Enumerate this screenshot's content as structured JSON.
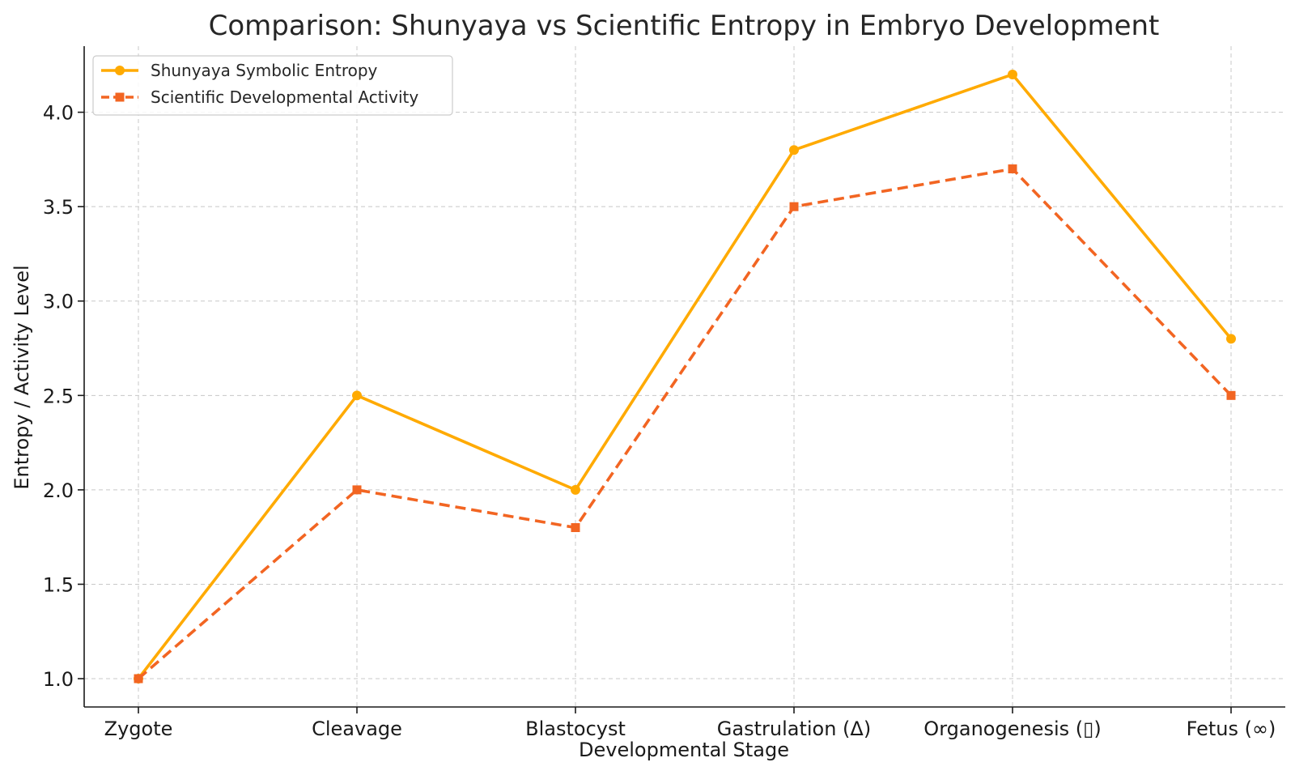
{
  "chart_data": {
    "type": "line",
    "title": "Comparison: Shunyaya vs Scientific Entropy in Embryo Development",
    "xlabel": "Developmental Stage",
    "ylabel": "Entropy / Activity Level",
    "categories": [
      "Zygote",
      "Cleavage",
      "Blastocyst",
      "Gastrulation (Δ)",
      "Organogenesis (▯)",
      "Fetus (∞)"
    ],
    "ylim": [
      0.85,
      4.35
    ],
    "yticks": [
      1.0,
      1.5,
      2.0,
      2.5,
      3.0,
      3.5,
      4.0
    ],
    "ytick_labels": [
      "1.0",
      "1.5",
      "2.0",
      "2.5",
      "3.0",
      "3.5",
      "4.0"
    ],
    "grid": true,
    "legend_position": "top-left",
    "series": [
      {
        "name": "Shunyaya Symbolic Entropy",
        "values": [
          1.0,
          2.5,
          2.0,
          3.8,
          4.2,
          2.8
        ],
        "color": "#FFAA00",
        "line_style": "solid",
        "marker": "circle"
      },
      {
        "name": "Scientific Developmental Activity",
        "values": [
          1.0,
          2.0,
          1.8,
          3.5,
          3.7,
          2.5
        ],
        "color": "#F26522",
        "line_style": "dashed",
        "marker": "square"
      }
    ]
  }
}
